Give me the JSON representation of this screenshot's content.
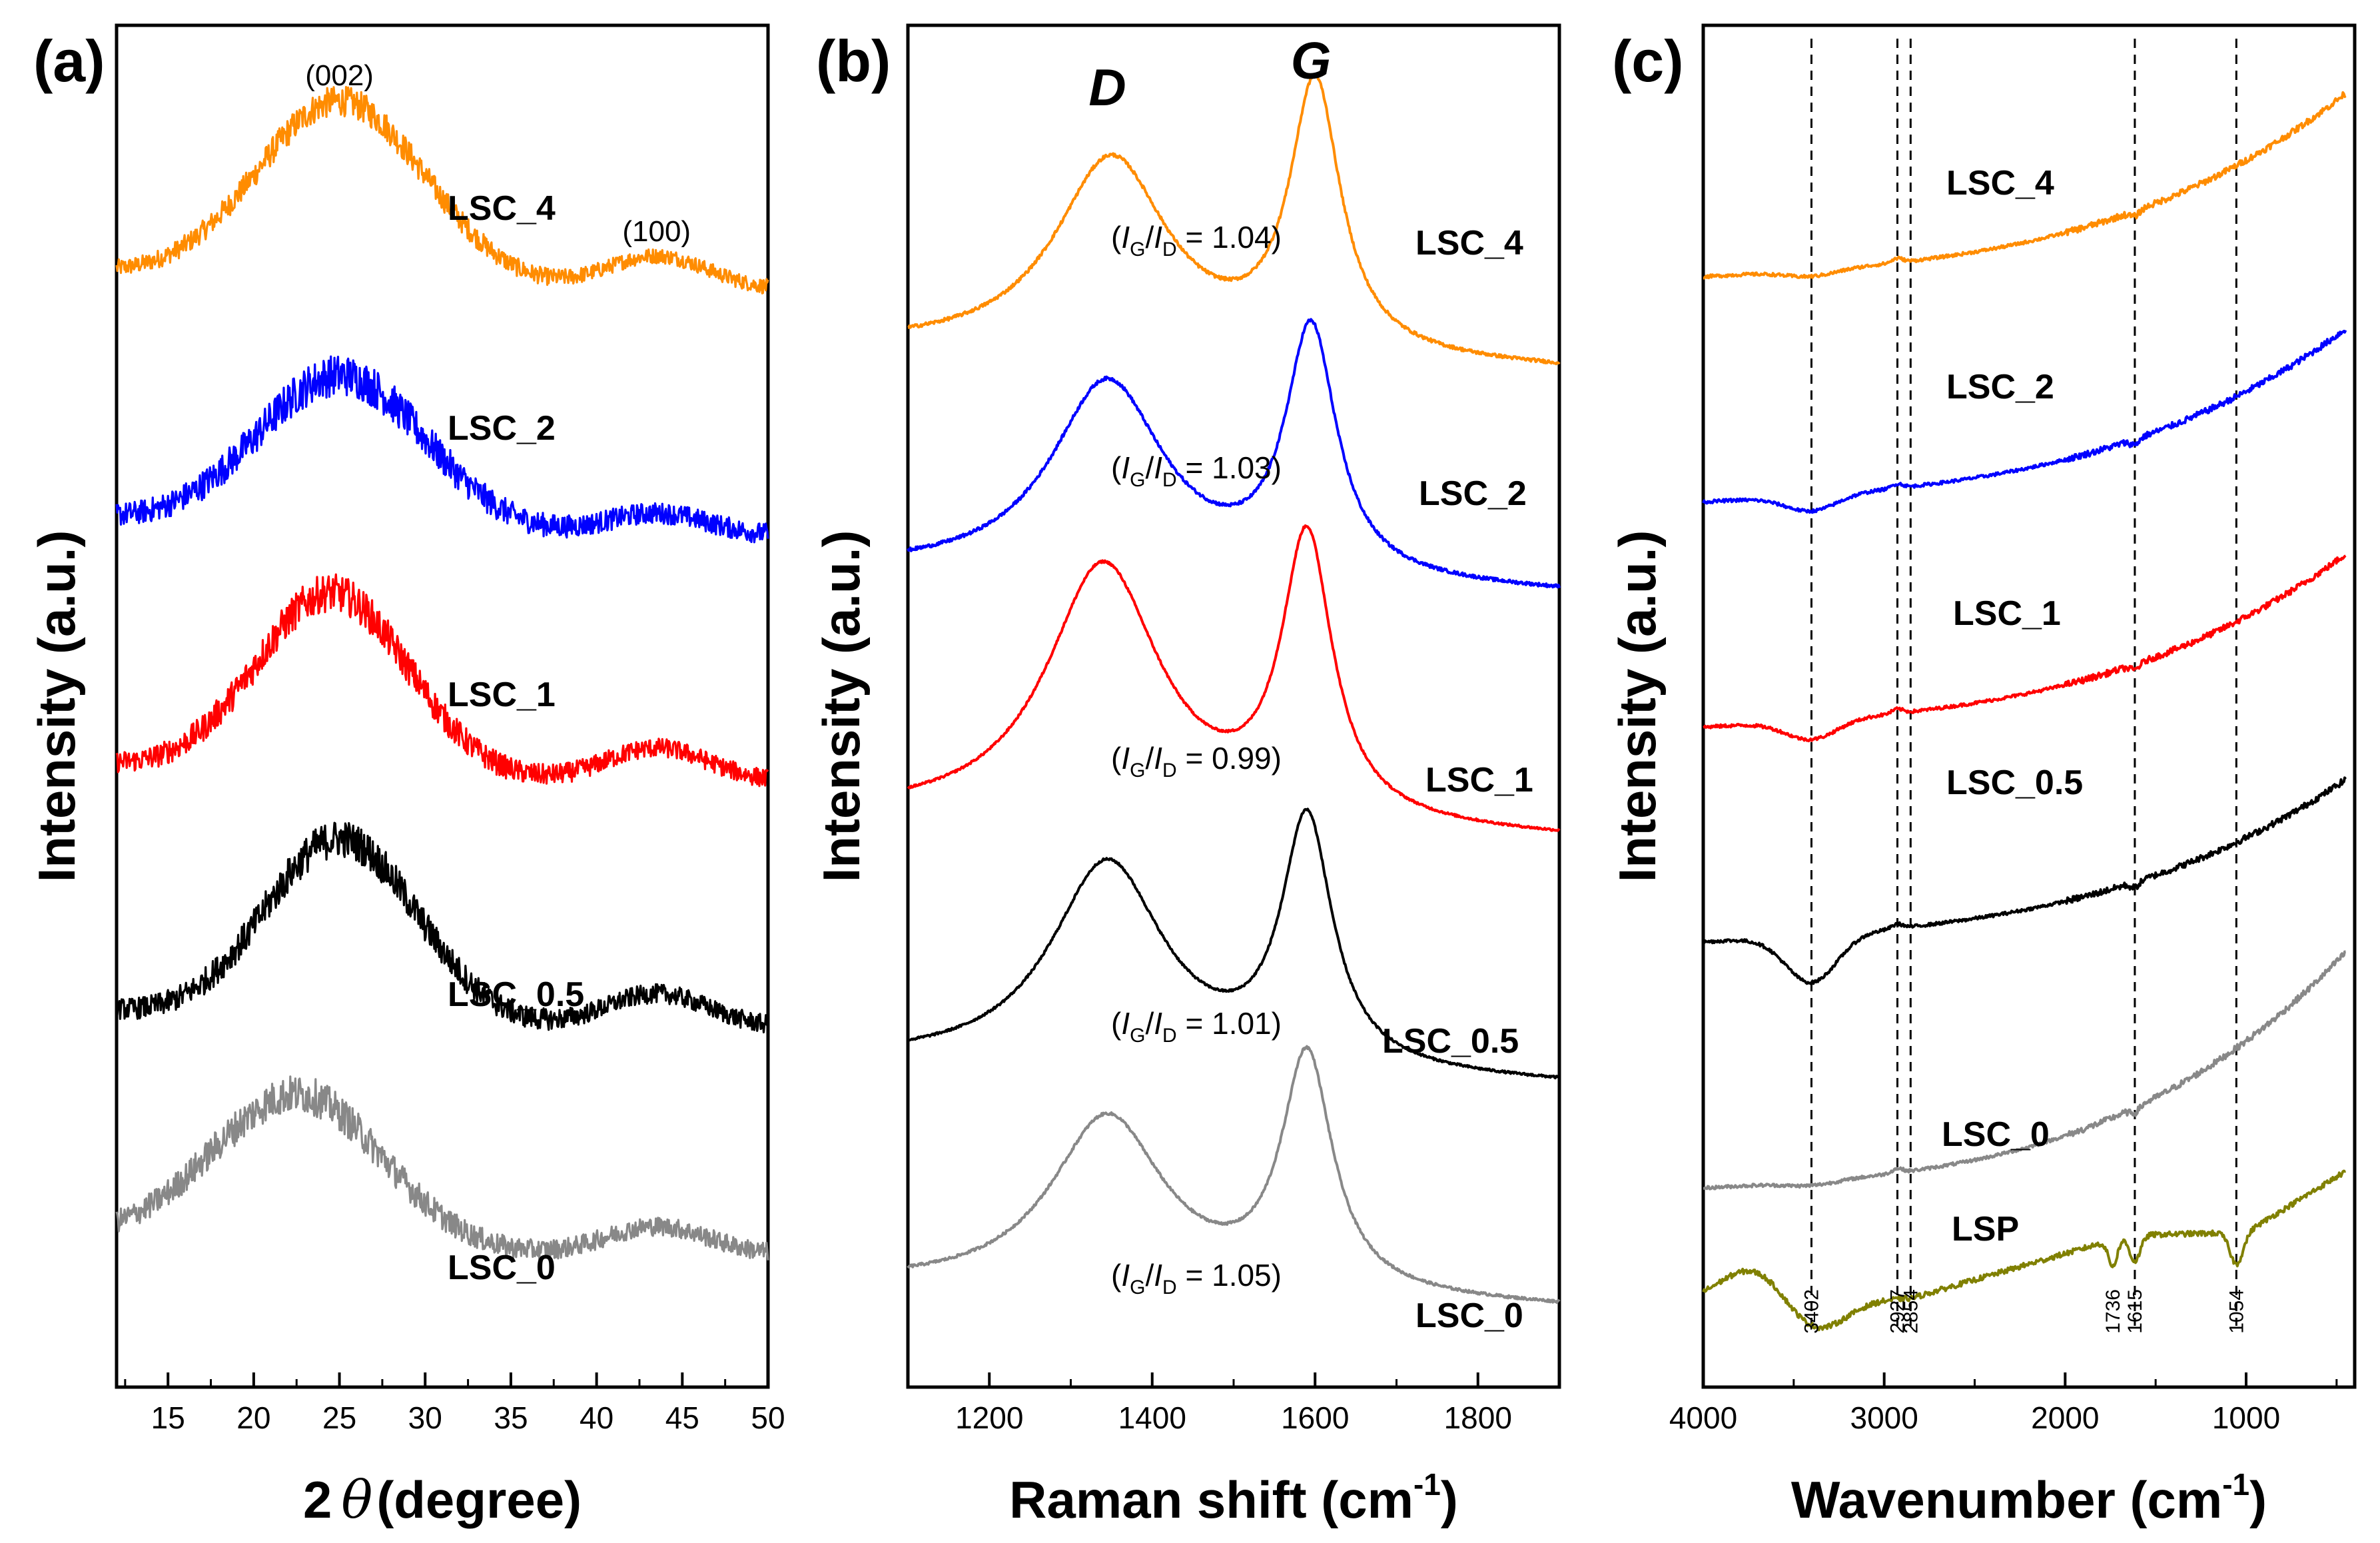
{
  "chart_data": [
    {
      "panel": "(a)",
      "type": "line",
      "xlabel_prefix": "2",
      "xlabel_symbol": "θ",
      "xlabel_suffix": "(degree)",
      "ylabel": "Intensity (a.u.)",
      "xlim": [
        12,
        50
      ],
      "xticks": [
        15,
        20,
        25,
        30,
        35,
        40,
        45,
        50
      ],
      "peak_annotations": [
        {
          "text": "(002)",
          "x": 25
        },
        {
          "text": "(100)",
          "x": 43.5
        }
      ],
      "series": [
        {
          "name": "LSC_4",
          "color": "#FF8C00",
          "baseline": 5.2,
          "broad_center": 25,
          "broad_height": 1.0,
          "broad_width": 5.0,
          "second_center": 43.5,
          "second_height": 0.18,
          "second_width": 3.0,
          "noise": 0.08
        },
        {
          "name": "LSC_2",
          "color": "#0000FF",
          "baseline": 3.9,
          "broad_center": 25,
          "broad_height": 0.85,
          "broad_width": 5.0,
          "second_center": 43.5,
          "second_height": 0.12,
          "second_width": 3.0,
          "noise": 0.11
        },
        {
          "name": "LSC_1",
          "color": "#FF0000",
          "baseline": 2.6,
          "broad_center": 24.5,
          "broad_height": 1.0,
          "broad_width": 4.5,
          "second_center": 43.5,
          "second_height": 0.18,
          "second_width": 3.0,
          "noise": 0.1
        },
        {
          "name": "LSC_0.5",
          "color": "#000000",
          "baseline": 1.3,
          "broad_center": 25,
          "broad_height": 1.0,
          "broad_width": 4.5,
          "second_center": 43.5,
          "second_height": 0.18,
          "second_width": 3.0,
          "noise": 0.1
        },
        {
          "name": "LSC_0",
          "color": "#888888",
          "baseline": 0.1,
          "broad_center": 22.5,
          "broad_height": 0.85,
          "broad_width": 5.0,
          "second_center": 43.5,
          "second_height": 0.15,
          "second_width": 3.0,
          "noise": 0.1
        }
      ]
    },
    {
      "panel": "(b)",
      "type": "line",
      "xlabel": "Raman shift (cm",
      "xlabel_sup": "-1",
      "xlabel_end": ")",
      "ylabel": "Intensity (a.u.)",
      "xlim": [
        1100,
        1900
      ],
      "xticks": [
        1200,
        1400,
        1600,
        1800
      ],
      "peak_letters": [
        {
          "text": "D",
          "x": 1345
        },
        {
          "text": "G",
          "x": 1595
        }
      ],
      "series": [
        {
          "name": "LSC_4",
          "color": "#FF8C00",
          "ratio_value": "1.04",
          "baseline": 4.2,
          "d_center": 1350,
          "g_center": 1600,
          "d_height": 0.95,
          "g_height": 1.2,
          "noise": 0.015
        },
        {
          "name": "LSC_2",
          "color": "#0000FF",
          "ratio_value": "1.03",
          "baseline": 3.2,
          "d_center": 1345,
          "g_center": 1595,
          "d_height": 0.95,
          "g_height": 1.1,
          "noise": 0.015
        },
        {
          "name": "LSC_1",
          "color": "#FF0000",
          "ratio_value": "0.99",
          "baseline": 2.1,
          "d_center": 1340,
          "g_center": 1590,
          "d_height": 1.25,
          "g_height": 1.25,
          "noise": 0.01
        },
        {
          "name": "LSC_0.5",
          "color": "#000000",
          "ratio_value": "1.01",
          "baseline": 1.0,
          "d_center": 1345,
          "g_center": 1590,
          "d_height": 1.0,
          "g_height": 1.1,
          "noise": 0.01
        },
        {
          "name": "LSC_0",
          "color": "#888888",
          "ratio_value": "1.05",
          "baseline": 0.0,
          "d_center": 1345,
          "g_center": 1590,
          "d_height": 0.85,
          "g_height": 1.05,
          "noise": 0.012
        }
      ],
      "ratio_open": "(",
      "ratio_num": "I",
      "ratio_num_sub": "G",
      "ratio_slash": "/",
      "ratio_den": "I",
      "ratio_den_sub": "D",
      "ratio_eq": " = ",
      "ratio_close": ")"
    },
    {
      "panel": "(c)",
      "type": "line",
      "xlabel": "Wavenumber (cm",
      "xlabel_sup": "-1",
      "xlabel_end": ")",
      "ylabel": "Intensity (a.u.)",
      "xlim": [
        4000,
        400
      ],
      "xticks": [
        4000,
        3000,
        2000,
        1000
      ],
      "band_lines": [
        3402,
        2927,
        2854,
        1615,
        1054
      ],
      "band_labels": [
        {
          "text": "3402",
          "x": 3402
        },
        {
          "text": "2927",
          "x": 2927
        },
        {
          "text": "2854",
          "x": 2854
        },
        {
          "text": "1736",
          "x": 1736
        },
        {
          "text": "1615",
          "x": 1615
        },
        {
          "text": "1054",
          "x": 1054
        }
      ],
      "series": [
        {
          "name": "LSC_4",
          "color": "#FF8C00",
          "baseline": 10.0,
          "rise": 1.4,
          "dip3402": 0.06
        },
        {
          "name": "LSC_2",
          "color": "#0000FF",
          "baseline": 7.85,
          "rise": 1.3,
          "dip3402": 0.15
        },
        {
          "name": "LSC_1",
          "color": "#FF0000",
          "baseline": 5.7,
          "rise": 1.3,
          "dip3402": 0.18
        },
        {
          "name": "LSC_0.5",
          "color": "#000000",
          "baseline": 3.65,
          "rise": 1.2,
          "dip3402": 0.45
        },
        {
          "name": "LSC_0",
          "color": "#888888",
          "baseline": 1.3,
          "rise": 1.9,
          "dip3402": 0.04
        },
        {
          "name": "LSP",
          "color": "#808000",
          "baseline": 0.2,
          "rise": 0.9,
          "dip3402": 0.3
        }
      ]
    }
  ]
}
